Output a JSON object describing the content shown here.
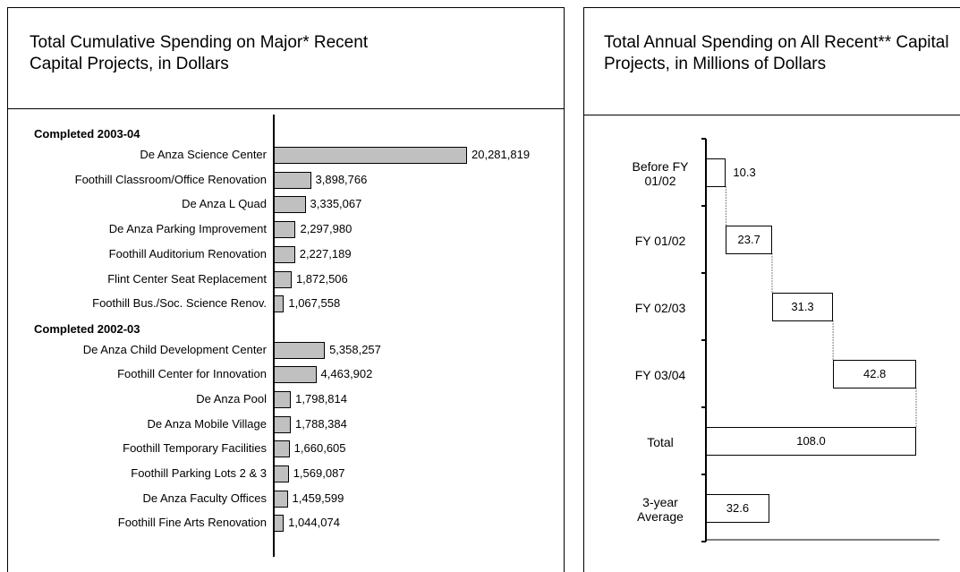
{
  "chart_data": [
    {
      "type": "bar",
      "orientation": "horizontal",
      "title": "Total Cumulative Spending on Major* Recent Capital Projects, in Dollars",
      "color": "#c0c0c0",
      "xlim": [
        0,
        21000000
      ],
      "groups": [
        {
          "name": "Completed 2003-04",
          "categories": [
            "De Anza Science Center",
            "Foothill Classroom/Office Renovation",
            "De Anza L Quad",
            "De Anza Parking Improvement",
            "Foothill Auditorium Renovation",
            "Flint Center Seat Replacement",
            "Foothill Bus./Soc. Science Renov."
          ],
          "values": [
            20281819,
            3898766,
            3335067,
            2297980,
            2227189,
            1872506,
            1067558
          ],
          "value_labels": [
            "20,281,819",
            "3,898,766",
            "3,335,067",
            "2,297,980",
            "2,227,189",
            "1,872,506",
            "1,067,558"
          ]
        },
        {
          "name": "Completed 2002-03",
          "categories": [
            "De Anza Child Development Center",
            "Foothill Center for Innovation",
            "De Anza Pool",
            "De Anza Mobile Village",
            "Foothill Temporary Facilities",
            "Foothill Parking Lots 2 & 3",
            "De Anza Faculty Offices",
            "Foothill Fine Arts Renovation"
          ],
          "values": [
            5358257,
            4463902,
            1798814,
            1788384,
            1660605,
            1569087,
            1459599,
            1044074
          ],
          "value_labels": [
            "5,358,257",
            "4,463,902",
            "1,798,814",
            "1,788,384",
            "1,660,605",
            "1,569,087",
            "1,459,599",
            "1,044,074"
          ]
        }
      ]
    },
    {
      "type": "waterfall",
      "title": "Total Annual Spending on All Recent** Capital Projects, in Millions of Dollars",
      "color": "#ffffff",
      "xlim": [
        0,
        120
      ],
      "categories": [
        "Before FY 01/02",
        "FY 01/02",
        "FY 02/03",
        "FY 03/04",
        "Total",
        "3-year Average"
      ],
      "values": [
        10.3,
        23.7,
        31.3,
        42.8,
        108.0,
        32.6
      ],
      "value_labels": [
        "10.3",
        "23.7",
        "31.3",
        "42.8",
        "108.0",
        "32.6"
      ],
      "measure": [
        "relative",
        "relative",
        "relative",
        "relative",
        "total",
        "absolute"
      ]
    }
  ]
}
